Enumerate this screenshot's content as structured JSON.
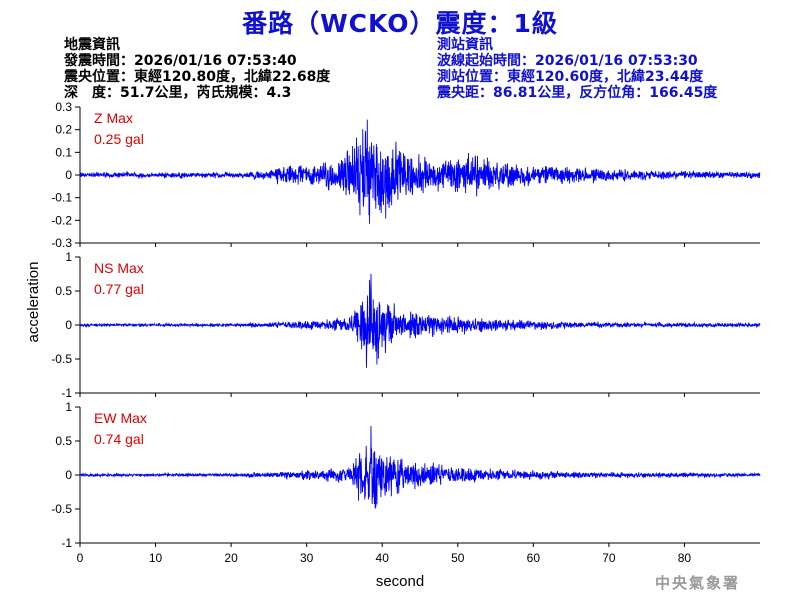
{
  "title": "番路（WCKO）震度：1級",
  "info_left": {
    "heading": "地震資訊",
    "origin_time": "發震時間：2026/01/16 07:53:40",
    "epicenter": "震央位置：東經120.80度，北緯22.68度",
    "depth_magnitude": "深　度：51.7公里，芮氏規模：4.3"
  },
  "info_right": {
    "heading": "測站資訊",
    "wave_start": "波線起始時間：2026/01/16 07:53:30",
    "station_location": "測站位置：東經120.60度，北緯23.44度",
    "distance": "震央距：86.81公里，反方位角：166.45度"
  },
  "agency": "中央氣象署",
  "colors": {
    "trace": "#0000ff",
    "max_label": "#e00000",
    "title": "#1010d0"
  },
  "chart_data": {
    "type": "line",
    "xlabel": "second",
    "ylabel": "acceleration",
    "xlim": [
      0,
      90
    ],
    "x_ticks": [
      0,
      10,
      20,
      30,
      40,
      50,
      60,
      70,
      80
    ],
    "panels": [
      {
        "name": "Z",
        "max_title": "Z Max",
        "max_value": "0.25 gal",
        "ylim": [
          -0.3,
          0.3
        ],
        "y_ticks": [
          -0.3,
          -0.2,
          -0.1,
          0,
          0.1,
          0.2,
          0.3
        ],
        "y_tick_labels": [
          "-0.3",
          "-0.2",
          "-0.1",
          "0",
          "0.1",
          "0.2",
          "0.3"
        ],
        "noise": 0.008,
        "envelope": [
          [
            0,
            0.01
          ],
          [
            22,
            0.012
          ],
          [
            23,
            0.025
          ],
          [
            24,
            0.012
          ],
          [
            26,
            0.04
          ],
          [
            30,
            0.05
          ],
          [
            34,
            0.08
          ],
          [
            36,
            0.15
          ],
          [
            38,
            0.25
          ],
          [
            41,
            0.18
          ],
          [
            44,
            0.1
          ],
          [
            48,
            0.08
          ],
          [
            52,
            0.11
          ],
          [
            55,
            0.07
          ],
          [
            60,
            0.05
          ],
          [
            70,
            0.03
          ],
          [
            80,
            0.018
          ],
          [
            89,
            0.015
          ]
        ]
      },
      {
        "name": "NS",
        "max_title": "NS Max",
        "max_value": "0.77 gal",
        "ylim": [
          -1,
          1
        ],
        "y_ticks": [
          -1,
          -0.5,
          0,
          0.5,
          1
        ],
        "y_tick_labels": [
          "-1",
          "-0.5",
          "0",
          "0.5",
          "1"
        ],
        "noise": 0.015,
        "envelope": [
          [
            0,
            0.015
          ],
          [
            22,
            0.02
          ],
          [
            23,
            0.05
          ],
          [
            24,
            0.02
          ],
          [
            27,
            0.06
          ],
          [
            32,
            0.08
          ],
          [
            36,
            0.15
          ],
          [
            37,
            0.5
          ],
          [
            38.5,
            0.77
          ],
          [
            40,
            0.45
          ],
          [
            43,
            0.25
          ],
          [
            47,
            0.18
          ],
          [
            52,
            0.12
          ],
          [
            58,
            0.08
          ],
          [
            70,
            0.04
          ],
          [
            89,
            0.025
          ]
        ]
      },
      {
        "name": "EW",
        "max_title": "EW Max",
        "max_value": "0.74 gal",
        "ylim": [
          -1,
          1
        ],
        "y_ticks": [
          -1,
          -0.5,
          0,
          0.5,
          1
        ],
        "y_tick_labels": [
          "-1",
          "-0.5",
          "0",
          "0.5",
          "1"
        ],
        "noise": 0.015,
        "envelope": [
          [
            0,
            0.015
          ],
          [
            22,
            0.02
          ],
          [
            23,
            0.05
          ],
          [
            24,
            0.02
          ],
          [
            27,
            0.06
          ],
          [
            32,
            0.09
          ],
          [
            36,
            0.16
          ],
          [
            37,
            0.5
          ],
          [
            38.5,
            0.74
          ],
          [
            40,
            0.45
          ],
          [
            43,
            0.25
          ],
          [
            47,
            0.18
          ],
          [
            52,
            0.12
          ],
          [
            58,
            0.08
          ],
          [
            70,
            0.04
          ],
          [
            89,
            0.025
          ]
        ]
      }
    ]
  }
}
